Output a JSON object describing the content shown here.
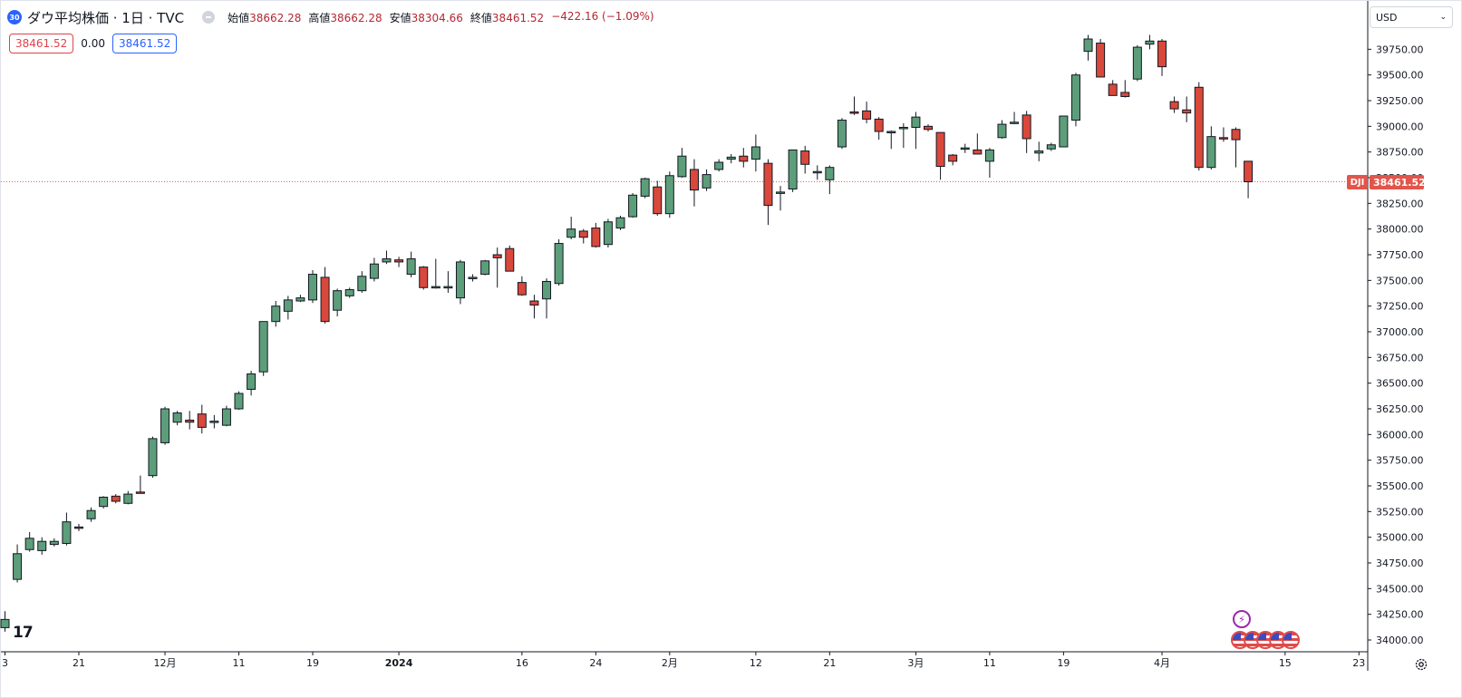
{
  "header": {
    "symbol_badge": "30",
    "title": "ダウ平均株価 · 1日 · TVC",
    "ohlc": [
      {
        "label": "始値",
        "value": "38662.28"
      },
      {
        "label": "高値",
        "value": "38662.28"
      },
      {
        "label": "安値",
        "value": "38304.66"
      },
      {
        "label": "終値",
        "value": "38461.52"
      }
    ],
    "change": "−422.16 (−1.09%)",
    "bid": "38461.52",
    "spread": "0.00",
    "ask": "38461.52"
  },
  "currency": {
    "label": "USD"
  },
  "price_label": {
    "symbol": "DJI",
    "value": "38461.52"
  },
  "colors": {
    "up": "#5d9e7a",
    "down": "#d9483b",
    "grid": "#f0f3fa",
    "last_line": "#e2554b"
  },
  "icons": {
    "event": "lightning-icon",
    "economic": "us-flag-icon",
    "settings": "gear-icon"
  },
  "chart_data": {
    "type": "candlestick",
    "ylim": [
      33850,
      40100
    ],
    "y_ticks": [
      34000,
      34250,
      34500,
      34750,
      35000,
      35250,
      35500,
      35750,
      36000,
      36250,
      36500,
      36750,
      37000,
      37250,
      37500,
      37750,
      38000,
      38250,
      38500,
      38750,
      39000,
      39250,
      39500,
      39750
    ],
    "y_tick_labels": [
      "34000.00",
      "34250.00",
      "34500.00",
      "34750.00",
      "35000.00",
      "35250.00",
      "35500.00",
      "35750.00",
      "36000.00",
      "36250.00",
      "36500.00",
      "36750.00",
      "37000.00",
      "37250.00",
      "37500.00",
      "37750.00",
      "38000.00",
      "38250.00",
      "38500.00",
      "38750.00",
      "39000.00",
      "39250.00",
      "39500.00",
      "39750.00"
    ],
    "x_labels": [
      {
        "index": 0,
        "label": "3"
      },
      {
        "index": 6,
        "label": "21"
      },
      {
        "index": 13,
        "label": "12月"
      },
      {
        "index": 19,
        "label": "11"
      },
      {
        "index": 25,
        "label": "19"
      },
      {
        "index": 32,
        "label": "2024"
      },
      {
        "index": 42,
        "label": "16"
      },
      {
        "index": 48,
        "label": "24"
      },
      {
        "index": 54,
        "label": "2月"
      },
      {
        "index": 61,
        "label": "12"
      },
      {
        "index": 67,
        "label": "21"
      },
      {
        "index": 74,
        "label": "3月"
      },
      {
        "index": 80,
        "label": "11"
      },
      {
        "index": 86,
        "label": "19"
      },
      {
        "index": 94,
        "label": "4月"
      },
      {
        "index": 104,
        "label": "15"
      },
      {
        "index": 110,
        "label": "23"
      }
    ],
    "candles": [
      {
        "o": 34120,
        "h": 34280,
        "l": 34080,
        "c": 34200
      },
      {
        "o": 34590,
        "h": 34930,
        "l": 34560,
        "c": 34840
      },
      {
        "o": 34880,
        "h": 35050,
        "l": 34860,
        "c": 34990
      },
      {
        "o": 34870,
        "h": 35000,
        "l": 34830,
        "c": 34960
      },
      {
        "o": 34930,
        "h": 34990,
        "l": 34910,
        "c": 34960
      },
      {
        "o": 34940,
        "h": 35240,
        "l": 34920,
        "c": 35150
      },
      {
        "o": 35100,
        "h": 35130,
        "l": 35060,
        "c": 35090
      },
      {
        "o": 35180,
        "h": 35290,
        "l": 35150,
        "c": 35260
      },
      {
        "o": 35300,
        "h": 35400,
        "l": 35280,
        "c": 35390
      },
      {
        "o": 35400,
        "h": 35420,
        "l": 35330,
        "c": 35350
      },
      {
        "o": 35330,
        "h": 35450,
        "l": 35320,
        "c": 35420
      },
      {
        "o": 35440,
        "h": 35600,
        "l": 35430,
        "c": 35430
      },
      {
        "o": 35600,
        "h": 35980,
        "l": 35580,
        "c": 35960
      },
      {
        "o": 35920,
        "h": 36270,
        "l": 35900,
        "c": 36250
      },
      {
        "o": 36120,
        "h": 36230,
        "l": 36090,
        "c": 36210
      },
      {
        "o": 36140,
        "h": 36230,
        "l": 36050,
        "c": 36120
      },
      {
        "o": 36200,
        "h": 36290,
        "l": 36010,
        "c": 36070
      },
      {
        "o": 36120,
        "h": 36190,
        "l": 36060,
        "c": 36130
      },
      {
        "o": 36090,
        "h": 36280,
        "l": 36080,
        "c": 36250
      },
      {
        "o": 36250,
        "h": 36420,
        "l": 36240,
        "c": 36400
      },
      {
        "o": 36440,
        "h": 36620,
        "l": 36380,
        "c": 36590
      },
      {
        "o": 36610,
        "h": 37100,
        "l": 36570,
        "c": 37100
      },
      {
        "o": 37100,
        "h": 37300,
        "l": 37050,
        "c": 37250
      },
      {
        "o": 37200,
        "h": 37350,
        "l": 37120,
        "c": 37310
      },
      {
        "o": 37300,
        "h": 37360,
        "l": 37290,
        "c": 37330
      },
      {
        "o": 37310,
        "h": 37600,
        "l": 37280,
        "c": 37560
      },
      {
        "o": 37530,
        "h": 37630,
        "l": 37080,
        "c": 37100
      },
      {
        "o": 37210,
        "h": 37420,
        "l": 37150,
        "c": 37400
      },
      {
        "o": 37350,
        "h": 37430,
        "l": 37330,
        "c": 37410
      },
      {
        "o": 37400,
        "h": 37590,
        "l": 37380,
        "c": 37540
      },
      {
        "o": 37520,
        "h": 37720,
        "l": 37490,
        "c": 37660
      },
      {
        "o": 37680,
        "h": 37790,
        "l": 37660,
        "c": 37710
      },
      {
        "o": 37700,
        "h": 37730,
        "l": 37630,
        "c": 37680
      },
      {
        "o": 37560,
        "h": 37780,
        "l": 37530,
        "c": 37710
      },
      {
        "o": 37630,
        "h": 37640,
        "l": 37410,
        "c": 37430
      },
      {
        "o": 37440,
        "h": 37710,
        "l": 37420,
        "c": 37440
      },
      {
        "o": 37440,
        "h": 37590,
        "l": 37380,
        "c": 37440
      },
      {
        "o": 37330,
        "h": 37700,
        "l": 37270,
        "c": 37680
      },
      {
        "o": 37520,
        "h": 37560,
        "l": 37490,
        "c": 37530
      },
      {
        "o": 37560,
        "h": 37700,
        "l": 37550,
        "c": 37690
      },
      {
        "o": 37750,
        "h": 37820,
        "l": 37430,
        "c": 37720
      },
      {
        "o": 37810,
        "h": 37840,
        "l": 37590,
        "c": 37590
      },
      {
        "o": 37480,
        "h": 37540,
        "l": 37350,
        "c": 37360
      },
      {
        "o": 37300,
        "h": 37360,
        "l": 37130,
        "c": 37260
      },
      {
        "o": 37320,
        "h": 37520,
        "l": 37130,
        "c": 37490
      },
      {
        "o": 37470,
        "h": 37900,
        "l": 37450,
        "c": 37860
      },
      {
        "o": 37920,
        "h": 38120,
        "l": 37900,
        "c": 38000
      },
      {
        "o": 37980,
        "h": 38000,
        "l": 37860,
        "c": 37920
      },
      {
        "o": 38010,
        "h": 38060,
        "l": 37820,
        "c": 37830
      },
      {
        "o": 37850,
        "h": 38100,
        "l": 37820,
        "c": 38070
      },
      {
        "o": 38010,
        "h": 38130,
        "l": 37990,
        "c": 38110
      },
      {
        "o": 38120,
        "h": 38350,
        "l": 38110,
        "c": 38330
      },
      {
        "o": 38320,
        "h": 38500,
        "l": 38300,
        "c": 38490
      },
      {
        "o": 38410,
        "h": 38470,
        "l": 38130,
        "c": 38150
      },
      {
        "o": 38150,
        "h": 38560,
        "l": 38110,
        "c": 38520
      },
      {
        "o": 38510,
        "h": 38790,
        "l": 38500,
        "c": 38710
      },
      {
        "o": 38580,
        "h": 38680,
        "l": 38220,
        "c": 38380
      },
      {
        "o": 38400,
        "h": 38580,
        "l": 38370,
        "c": 38530
      },
      {
        "o": 38580,
        "h": 38680,
        "l": 38560,
        "c": 38650
      },
      {
        "o": 38680,
        "h": 38730,
        "l": 38640,
        "c": 38700
      },
      {
        "o": 38710,
        "h": 38790,
        "l": 38600,
        "c": 38660
      },
      {
        "o": 38680,
        "h": 38920,
        "l": 38560,
        "c": 38800
      },
      {
        "o": 38640,
        "h": 38680,
        "l": 38040,
        "c": 38230
      },
      {
        "o": 38360,
        "h": 38420,
        "l": 38180,
        "c": 38360
      },
      {
        "o": 38390,
        "h": 38760,
        "l": 38360,
        "c": 38770
      },
      {
        "o": 38760,
        "h": 38810,
        "l": 38540,
        "c": 38630
      },
      {
        "o": 38560,
        "h": 38620,
        "l": 38480,
        "c": 38560
      },
      {
        "o": 38480,
        "h": 38620,
        "l": 38340,
        "c": 38600
      },
      {
        "o": 38800,
        "h": 39080,
        "l": 38780,
        "c": 39060
      },
      {
        "o": 39140,
        "h": 39290,
        "l": 39110,
        "c": 39130
      },
      {
        "o": 39150,
        "h": 39240,
        "l": 39030,
        "c": 39070
      },
      {
        "o": 39070,
        "h": 39090,
        "l": 38870,
        "c": 38950
      },
      {
        "o": 38950,
        "h": 38960,
        "l": 38780,
        "c": 38950
      },
      {
        "o": 38990,
        "h": 39030,
        "l": 38790,
        "c": 38990
      },
      {
        "o": 38990,
        "h": 39140,
        "l": 38780,
        "c": 39090
      },
      {
        "o": 39000,
        "h": 39020,
        "l": 38950,
        "c": 38970
      },
      {
        "o": 38940,
        "h": 38940,
        "l": 38480,
        "c": 38610
      },
      {
        "o": 38720,
        "h": 38730,
        "l": 38620,
        "c": 38660
      },
      {
        "o": 38790,
        "h": 38830,
        "l": 38740,
        "c": 38790
      },
      {
        "o": 38770,
        "h": 38930,
        "l": 38730,
        "c": 38730
      },
      {
        "o": 38660,
        "h": 38790,
        "l": 38500,
        "c": 38770
      },
      {
        "o": 38890,
        "h": 39060,
        "l": 38880,
        "c": 39020
      },
      {
        "o": 39040,
        "h": 39140,
        "l": 39020,
        "c": 39040
      },
      {
        "o": 39110,
        "h": 39150,
        "l": 38740,
        "c": 38880
      },
      {
        "o": 38740,
        "h": 38850,
        "l": 38660,
        "c": 38760
      },
      {
        "o": 38780,
        "h": 38840,
        "l": 38760,
        "c": 38820
      },
      {
        "o": 38800,
        "h": 39100,
        "l": 38800,
        "c": 39100
      },
      {
        "o": 39060,
        "h": 39520,
        "l": 39000,
        "c": 39500
      },
      {
        "o": 39730,
        "h": 39890,
        "l": 39640,
        "c": 39850
      },
      {
        "o": 39810,
        "h": 39850,
        "l": 39480,
        "c": 39480
      },
      {
        "o": 39410,
        "h": 39450,
        "l": 39300,
        "c": 39300
      },
      {
        "o": 39330,
        "h": 39450,
        "l": 39280,
        "c": 39290
      },
      {
        "o": 39460,
        "h": 39790,
        "l": 39440,
        "c": 39770
      },
      {
        "o": 39800,
        "h": 39890,
        "l": 39750,
        "c": 39830
      },
      {
        "o": 39830,
        "h": 39850,
        "l": 39490,
        "c": 39580
      },
      {
        "o": 39240,
        "h": 39290,
        "l": 39130,
        "c": 39170
      },
      {
        "o": 39160,
        "h": 39290,
        "l": 39040,
        "c": 39130
      },
      {
        "o": 39380,
        "h": 39430,
        "l": 38570,
        "c": 38600
      },
      {
        "o": 38600,
        "h": 39000,
        "l": 38580,
        "c": 38900
      },
      {
        "o": 38890,
        "h": 38990,
        "l": 38850,
        "c": 38880
      },
      {
        "o": 38970,
        "h": 38990,
        "l": 38600,
        "c": 38870
      },
      {
        "o": 38660,
        "h": 38660,
        "l": 38300,
        "c": 38460
      }
    ],
    "last_price": 38461.52
  }
}
